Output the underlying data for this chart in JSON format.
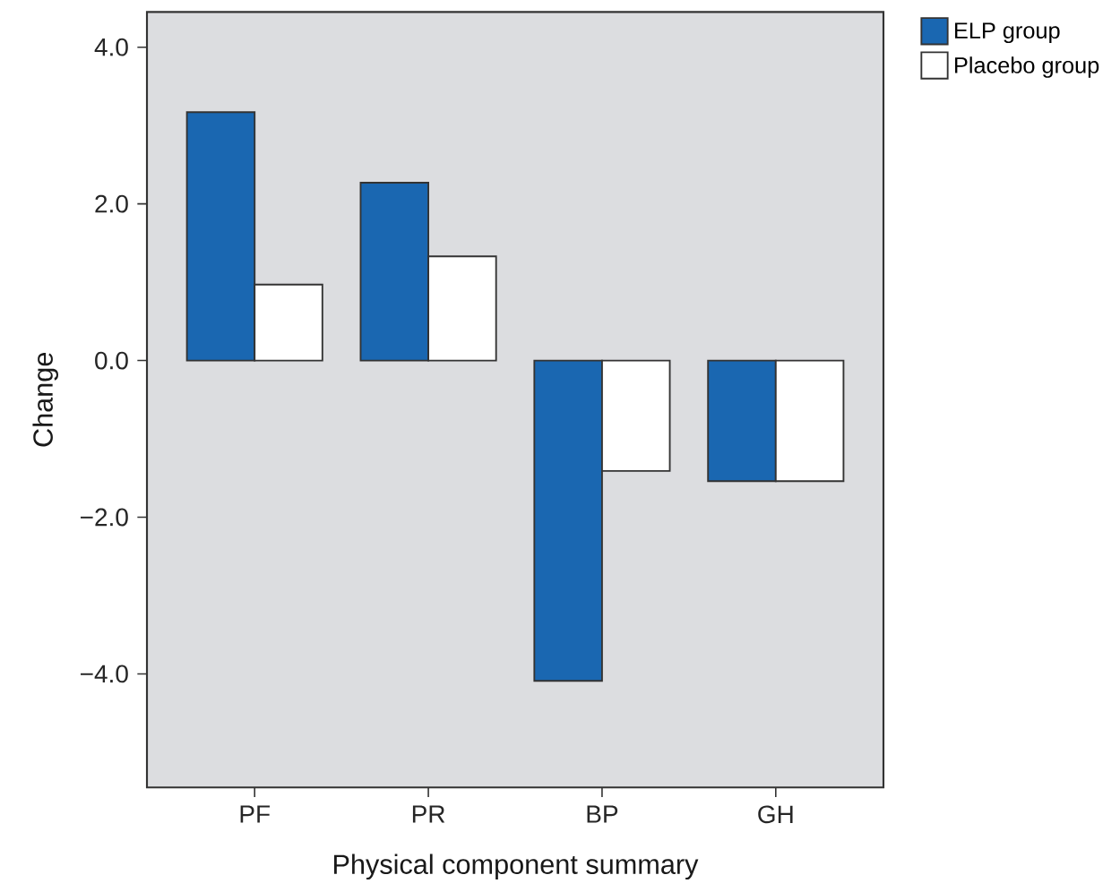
{
  "chart_data": {
    "type": "bar",
    "xlabel": "Physical component summary",
    "ylabel": "Change",
    "categories": [
      "PF",
      "PR",
      "BP",
      "GH"
    ],
    "series": [
      {
        "name": "ELP group",
        "color": "#1a67b1",
        "values": [
          3.17,
          2.27,
          -4.09,
          -1.54
        ]
      },
      {
        "name": "Placebo group",
        "color": "#ffffff",
        "values": [
          0.97,
          1.33,
          -1.41,
          -1.54
        ]
      }
    ],
    "ylim": [
      -5.45,
      4.45
    ],
    "yticks": [
      {
        "value": -4,
        "label": "−4.0"
      },
      {
        "value": -2,
        "label": "−2.0"
      },
      {
        "value": 0,
        "label": "0.0"
      },
      {
        "value": 2,
        "label": "2.0"
      },
      {
        "value": 4,
        "label": "4.0"
      }
    ],
    "grid": false,
    "legend": "top right"
  }
}
